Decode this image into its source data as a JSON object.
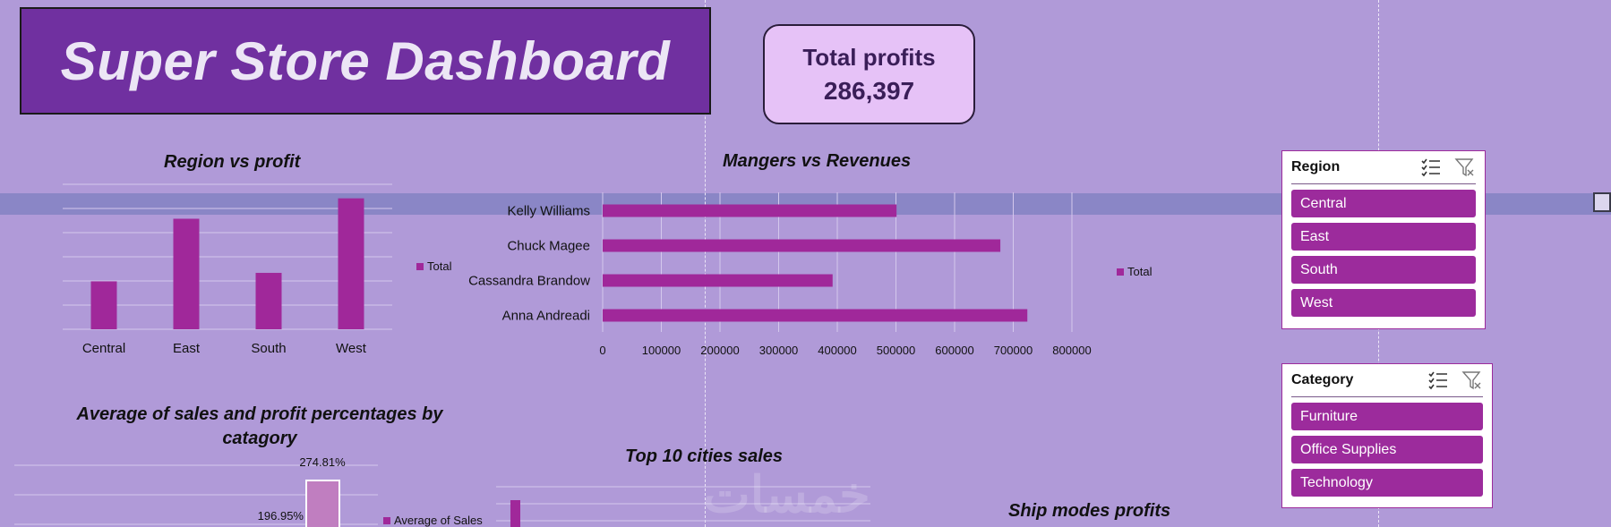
{
  "dashboard": {
    "title": "Super Store Dashboard",
    "kpi": {
      "label": "Total profits",
      "value": "286,397"
    }
  },
  "colors": {
    "background": "#b09ad8",
    "title_bg": "#7030a0",
    "bar": "#a0289a",
    "kpi_bg": "#e6c2f7",
    "slicer_item": "#9c2b9c"
  },
  "chart_data": [
    {
      "type": "bar",
      "title": "Region vs profit",
      "categories": [
        "Central",
        "East",
        "South",
        "West"
      ],
      "values": [
        39700,
        91500,
        46700,
        108400
      ],
      "legend": "Total",
      "ylim": [
        0,
        120000
      ],
      "grid": true
    },
    {
      "type": "bar",
      "orientation": "horizontal",
      "title": "Mangers vs Revenues",
      "categories": [
        "Kelly Williams",
        "Chuck Magee",
        "Cassandra Brandow",
        "Anna Andreadi"
      ],
      "values": [
        501000,
        678000,
        392000,
        724000
      ],
      "legend": "Total",
      "xticks": [
        "0",
        "100000",
        "200000",
        "300000",
        "400000",
        "500000",
        "600000",
        "700000",
        "800000"
      ],
      "xlim": [
        0,
        800000
      ],
      "grid": true
    },
    {
      "type": "bar",
      "title": "Average of sales and profit percentages by catagory",
      "visible_labels": [
        "274.81%",
        "196.95%"
      ],
      "legend": "Average of Sales"
    },
    {
      "type": "bar",
      "orientation": "horizontal",
      "title": "Top 10 cities sales"
    },
    {
      "type": "bar",
      "title": "Ship modes profits"
    }
  ],
  "slicers": {
    "region": {
      "title": "Region",
      "items": [
        "Central",
        "East",
        "South",
        "West"
      ]
    },
    "category": {
      "title": "Category",
      "items": [
        "Furniture",
        "Office Supplies",
        "Technology"
      ]
    }
  },
  "icons": {
    "multi_select": "multi-select-icon",
    "clear_filter": "clear-filter-icon"
  }
}
